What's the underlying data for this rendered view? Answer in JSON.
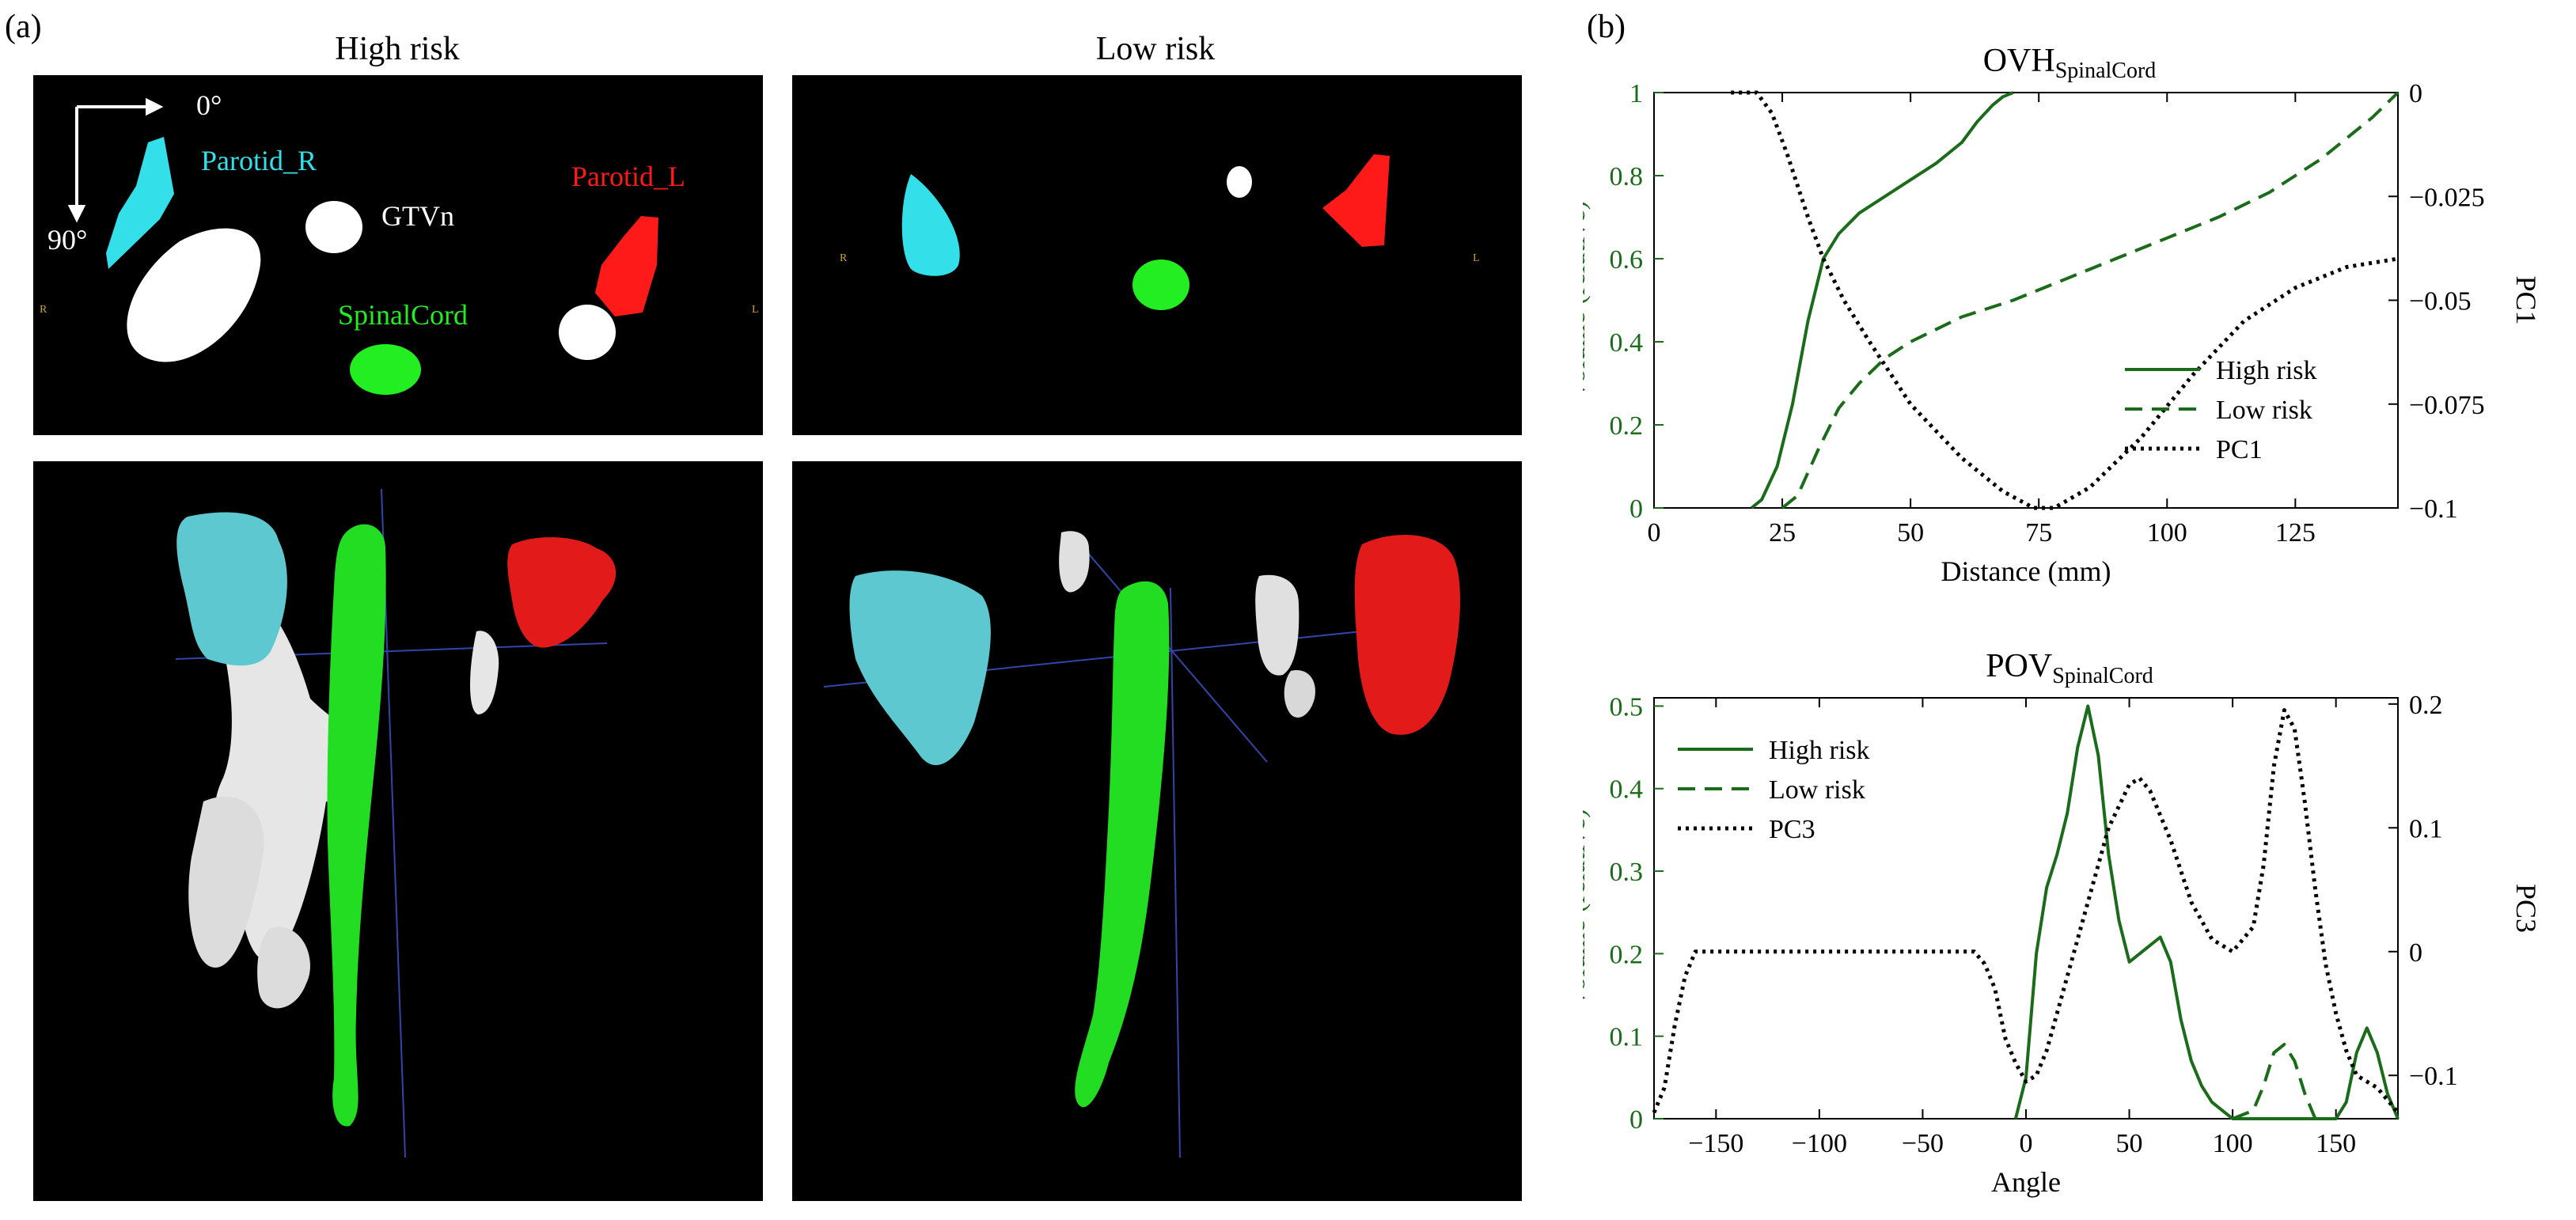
{
  "panel_a": {
    "label": "(a)",
    "titles": [
      "High risk",
      "Low risk"
    ],
    "axes_note": {
      "right_angle": "0°",
      "down_angle": "90°"
    },
    "structures": {
      "parotid_r": "Parotid_R",
      "gtvn": "GTVn",
      "parotid_l": "Parotid_L",
      "spinal_cord": "SpinalCord"
    },
    "side_marks": {
      "right": "R",
      "left": "L"
    },
    "colors": {
      "parotid_r": "#33e0ea",
      "parotid_l": "#ff1a1a",
      "spinal_cord": "#22ee22",
      "gtvn": "#ffffff"
    }
  },
  "panel_b": {
    "label": "(b)"
  },
  "chart_data": [
    {
      "type": "line",
      "title": "OVH",
      "title_subscript": "SpinalCord",
      "xlabel": "Distance (mm)",
      "ylabel": "Volume (relative)",
      "y2label": "PC1",
      "xlim": [
        0,
        145
      ],
      "ylim": [
        0,
        1
      ],
      "y2lim": [
        -0.1,
        0
      ],
      "xticks": [
        0,
        25,
        50,
        75,
        100,
        125
      ],
      "yticks": [
        "0",
        "0.2",
        "0.4",
        "0.6",
        "0.8",
        "1"
      ],
      "y2ticks": [
        "0",
        "-0.025",
        "-0.05",
        "-0.075",
        "-0.1"
      ],
      "legend": {
        "position": "lower-right",
        "entries": [
          "High risk",
          "Low risk",
          "PC1"
        ]
      },
      "series": [
        {
          "name": "High risk",
          "axis": "left",
          "style": "solid",
          "color": "#1a6b1a",
          "points": [
            [
              19,
              0
            ],
            [
              21,
              0.02
            ],
            [
              24,
              0.1
            ],
            [
              27,
              0.25
            ],
            [
              30,
              0.45
            ],
            [
              33,
              0.6
            ],
            [
              36,
              0.66
            ],
            [
              40,
              0.71
            ],
            [
              45,
              0.75
            ],
            [
              50,
              0.79
            ],
            [
              55,
              0.83
            ],
            [
              60,
              0.88
            ],
            [
              63,
              0.93
            ],
            [
              66,
              0.97
            ],
            [
              68,
              0.99
            ],
            [
              70,
              1.0
            ]
          ]
        },
        {
          "name": "Low risk",
          "axis": "left",
          "style": "dashed",
          "color": "#1a6b1a",
          "points": [
            [
              25,
              0
            ],
            [
              28,
              0.03
            ],
            [
              32,
              0.14
            ],
            [
              36,
              0.24
            ],
            [
              40,
              0.3
            ],
            [
              45,
              0.36
            ],
            [
              50,
              0.4
            ],
            [
              60,
              0.46
            ],
            [
              70,
              0.5
            ],
            [
              80,
              0.55
            ],
            [
              90,
              0.6
            ],
            [
              100,
              0.65
            ],
            [
              110,
              0.7
            ],
            [
              120,
              0.76
            ],
            [
              130,
              0.84
            ],
            [
              140,
              0.94
            ],
            [
              145,
              1.0
            ]
          ]
        },
        {
          "name": "PC1",
          "axis": "right",
          "style": "dotted",
          "color": "#000000",
          "points": [
            [
              15,
              0
            ],
            [
              20,
              0
            ],
            [
              23,
              -0.005
            ],
            [
              26,
              -0.015
            ],
            [
              30,
              -0.03
            ],
            [
              33,
              -0.04
            ],
            [
              37,
              -0.05
            ],
            [
              42,
              -0.06
            ],
            [
              50,
              -0.075
            ],
            [
              60,
              -0.088
            ],
            [
              68,
              -0.096
            ],
            [
              74,
              -0.1
            ],
            [
              78,
              -0.1
            ],
            [
              85,
              -0.095
            ],
            [
              95,
              -0.083
            ],
            [
              105,
              -0.068
            ],
            [
              115,
              -0.055
            ],
            [
              125,
              -0.047
            ],
            [
              135,
              -0.042
            ],
            [
              145,
              -0.04
            ]
          ]
        }
      ]
    },
    {
      "type": "line",
      "title": "POV",
      "title_subscript": "SpinalCord",
      "xlabel": "Angle",
      "ylabel": "Volume (relative)",
      "y2label": "PC3",
      "xlim": [
        -180,
        180
      ],
      "ylim": [
        0,
        0.51
      ],
      "y2lim": [
        -0.135,
        0.205
      ],
      "xticks": [
        -150,
        -100,
        -50,
        0,
        50,
        100,
        150
      ],
      "yticks": [
        "0",
        "0.1",
        "0.2",
        "0.3",
        "0.4",
        "0.5"
      ],
      "y2ticks": [
        "-0.1",
        "0",
        "0.1",
        "0.2"
      ],
      "legend": {
        "position": "upper-left",
        "entries": [
          "High risk",
          "Low risk",
          "PC3"
        ]
      },
      "series": [
        {
          "name": "High risk",
          "axis": "left",
          "style": "solid",
          "color": "#1a6b1a",
          "points": [
            [
              -5,
              0
            ],
            [
              0,
              0.05
            ],
            [
              5,
              0.2
            ],
            [
              10,
              0.28
            ],
            [
              15,
              0.32
            ],
            [
              20,
              0.37
            ],
            [
              25,
              0.45
            ],
            [
              30,
              0.5
            ],
            [
              35,
              0.44
            ],
            [
              40,
              0.32
            ],
            [
              45,
              0.24
            ],
            [
              50,
              0.19
            ],
            [
              55,
              0.2
            ],
            [
              60,
              0.21
            ],
            [
              65,
              0.22
            ],
            [
              70,
              0.19
            ],
            [
              75,
              0.12
            ],
            [
              80,
              0.07
            ],
            [
              85,
              0.04
            ],
            [
              90,
              0.02
            ],
            [
              95,
              0.01
            ],
            [
              100,
              0
            ],
            [
              150,
              0
            ],
            [
              155,
              0.02
            ],
            [
              160,
              0.08
            ],
            [
              165,
              0.11
            ],
            [
              170,
              0.08
            ],
            [
              175,
              0.03
            ],
            [
              180,
              0
            ]
          ]
        },
        {
          "name": "Low risk",
          "axis": "left",
          "style": "dashed",
          "color": "#1a6b1a",
          "points": [
            [
              100,
              0
            ],
            [
              110,
              0.01
            ],
            [
              115,
              0.04
            ],
            [
              120,
              0.08
            ],
            [
              125,
              0.09
            ],
            [
              130,
              0.07
            ],
            [
              135,
              0.03
            ],
            [
              140,
              0
            ]
          ]
        },
        {
          "name": "PC3",
          "axis": "right",
          "style": "dotted",
          "color": "#000000",
          "points": [
            [
              -180,
              -0.13
            ],
            [
              -175,
              -0.11
            ],
            [
              -170,
              -0.06
            ],
            [
              -165,
              -0.02
            ],
            [
              -160,
              0
            ],
            [
              -150,
              0
            ],
            [
              -100,
              0
            ],
            [
              -50,
              0
            ],
            [
              -25,
              0
            ],
            [
              -20,
              -0.01
            ],
            [
              -15,
              -0.03
            ],
            [
              -10,
              -0.07
            ],
            [
              -5,
              -0.09
            ],
            [
              0,
              -0.105
            ],
            [
              5,
              -0.1
            ],
            [
              10,
              -0.08
            ],
            [
              15,
              -0.05
            ],
            [
              20,
              -0.02
            ],
            [
              30,
              0.04
            ],
            [
              40,
              0.1
            ],
            [
              50,
              0.135
            ],
            [
              55,
              0.14
            ],
            [
              60,
              0.13
            ],
            [
              70,
              0.09
            ],
            [
              80,
              0.04
            ],
            [
              90,
              0.01
            ],
            [
              100,
              0
            ],
            [
              110,
              0.02
            ],
            [
              115,
              0.07
            ],
            [
              120,
              0.15
            ],
            [
              125,
              0.195
            ],
            [
              130,
              0.18
            ],
            [
              135,
              0.12
            ],
            [
              140,
              0.05
            ],
            [
              145,
              -0.01
            ],
            [
              150,
              -0.05
            ],
            [
              155,
              -0.08
            ],
            [
              160,
              -0.1
            ],
            [
              170,
              -0.11
            ],
            [
              180,
              -0.13
            ]
          ]
        }
      ]
    }
  ]
}
